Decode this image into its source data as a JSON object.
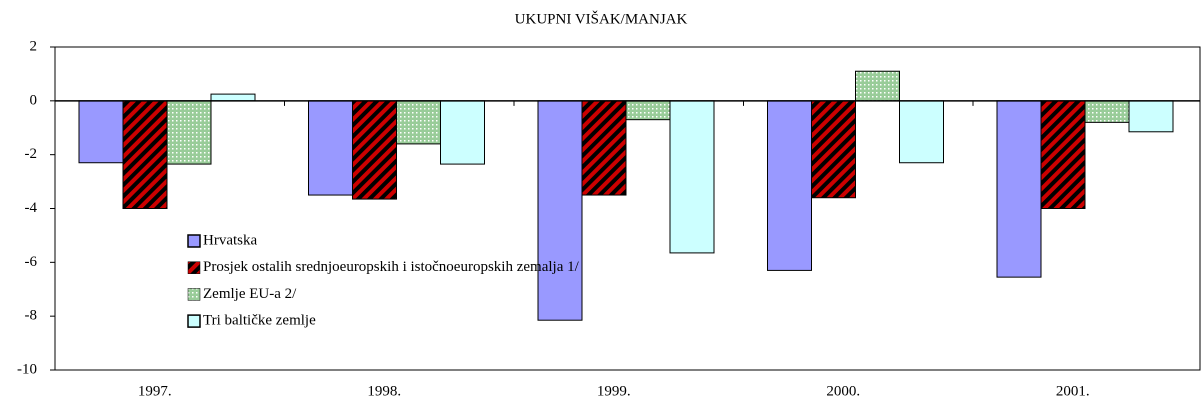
{
  "chart_data": {
    "type": "bar",
    "title": "UKUPNI VIŠAK/MANJAK",
    "categories": [
      "1997.",
      "1998.",
      "1999.",
      "2000.",
      "2001."
    ],
    "series": [
      {
        "name": "Hrvatska",
        "color": "#9999ff",
        "values": [
          -2.3,
          -3.5,
          -8.15,
          -6.3,
          -6.55
        ]
      },
      {
        "name": "Prosjek ostalih srednjoeuropskih i istočnoeuropskih zemalja 1/",
        "color": "#cc0000",
        "pattern": "stripes",
        "values": [
          -4.0,
          -3.65,
          -3.5,
          -3.6,
          -4.0
        ]
      },
      {
        "name": "Zemlje EU-a 2/",
        "color": "#99cc99",
        "pattern": "dots",
        "values": [
          -2.35,
          -1.6,
          -0.7,
          1.1,
          -0.8
        ]
      },
      {
        "name": "Tri baltičke zemlje",
        "color": "#ccffff",
        "values": [
          0.25,
          -2.35,
          -5.65,
          -2.3,
          -1.15
        ]
      }
    ],
    "ylim": [
      -10,
      2
    ],
    "yticks": [
      -10,
      -8,
      -6,
      -4,
      -2,
      0,
      2
    ],
    "legend": "left"
  }
}
